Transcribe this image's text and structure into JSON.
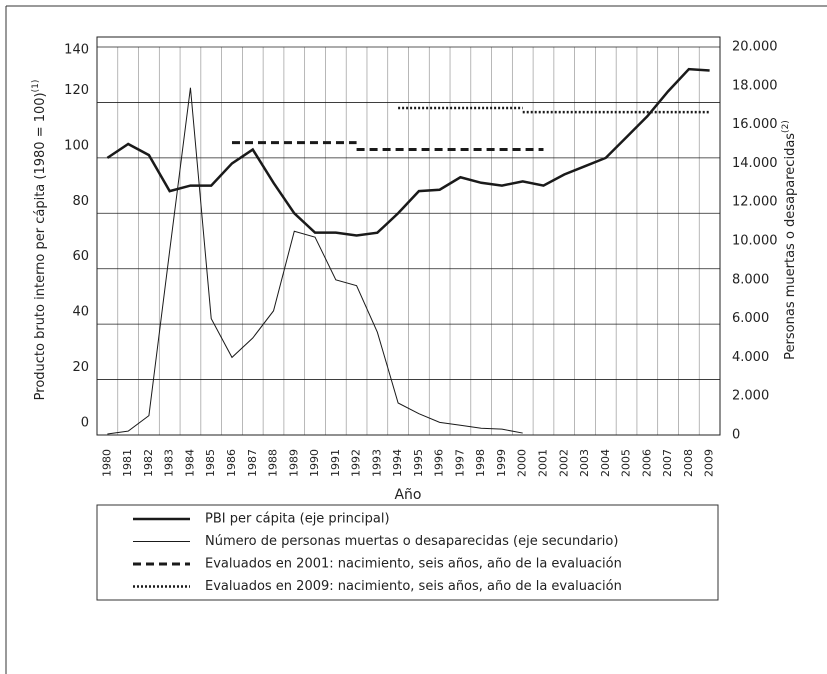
{
  "chart_data": {
    "type": "line",
    "xlabel": "Año",
    "ylabel": "Producto bruto interno per cápita (1980 = 100)",
    "ylabel_note": "(1)",
    "y2label": "Personas muertas o desaparecidas",
    "y2label_note": "(2)",
    "x": [
      1980,
      1981,
      1982,
      1983,
      1984,
      1985,
      1986,
      1987,
      1988,
      1989,
      1990,
      1991,
      1992,
      1993,
      1994,
      1995,
      1996,
      1997,
      1998,
      1999,
      2000,
      2001,
      2002,
      2003,
      2004,
      2005,
      2006,
      2007,
      2008,
      2009
    ],
    "ylim": [
      0,
      140
    ],
    "yticks": [
      0,
      20,
      40,
      60,
      80,
      100,
      120,
      140
    ],
    "y2lim": [
      0,
      20000
    ],
    "y2ticks": [
      0,
      {
        "value": 2000,
        "label": "2.000"
      },
      {
        "value": 4000,
        "label": "4.000"
      },
      {
        "value": 6000,
        "label": "6.000"
      },
      {
        "value": 8000,
        "label": "8.000"
      },
      {
        "value": 10000,
        "label": "10.000"
      },
      {
        "value": 12000,
        "label": "12.000"
      },
      {
        "value": 14000,
        "label": "14.000"
      },
      {
        "value": 16000,
        "label": "16.000"
      },
      {
        "value": 18000,
        "label": "18.000"
      },
      {
        "value": 20000,
        "label": "20.000"
      }
    ],
    "grid": true,
    "series": [
      {
        "name": "PBI per cápita (eje principal)",
        "color": "#1a1a1a",
        "width": 2.5,
        "values": [
          100,
          105,
          101,
          88,
          90,
          90,
          98,
          103,
          91,
          80,
          73,
          73,
          72,
          73,
          80,
          88,
          88.5,
          93,
          91,
          90,
          91.5,
          90,
          94,
          97,
          100,
          107.5,
          115,
          124,
          132,
          131.5
        ]
      },
      {
        "name": "Número de personas muertas o desaparecidas (eje secundario)",
        "color": "#1a1a1a",
        "width": 1,
        "axis": "y2",
        "values": [
          50,
          200,
          1000,
          9500,
          17900,
          6000,
          4000,
          5000,
          6400,
          10500,
          10200,
          8000,
          7700,
          5300,
          1650,
          1100,
          650,
          500,
          350,
          300,
          100,
          null,
          null,
          null,
          null,
          null,
          null,
          null,
          null,
          null
        ]
      },
      {
        "name": "Evaluados en 2001: nacimiento, seis años, año de la evaluación",
        "color": "#1a1a1a",
        "width": 3,
        "dash": "8 5",
        "segments": [
          {
            "from": 1986,
            "to": 1992,
            "value": 105.5
          },
          {
            "from": 1992,
            "to": 2001,
            "value": 103
          }
        ]
      },
      {
        "name": "Evaluados en 2009: nacimiento, seis años, año de la evaluación",
        "color": "#1a1a1a",
        "width": 2.5,
        "dash": "2 2",
        "segments": [
          {
            "from": 1994,
            "to": 2000,
            "value": 118
          },
          {
            "from": 2000,
            "to": 2009,
            "value": 116.5
          }
        ]
      }
    ]
  }
}
